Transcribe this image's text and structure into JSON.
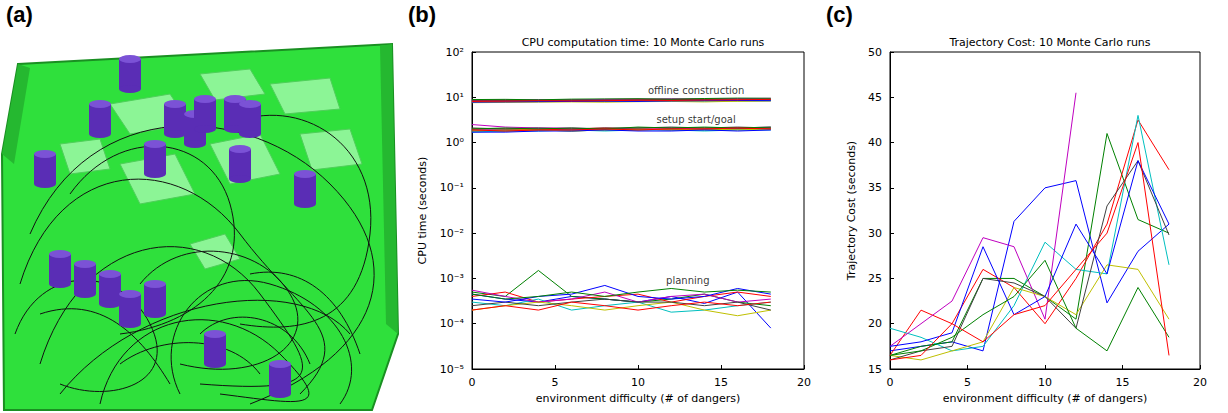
{
  "panel_labels": [
    "(a)",
    "(b)",
    "(c)"
  ],
  "chart_data": [
    {
      "type": "line",
      "title": "CPU computation time: 10 Monte Carlo runs",
      "x_label": "environment difficulty (# of dangers)",
      "y_label": "CPU time (seconds)",
      "log": "y",
      "grid": false,
      "xlim": [
        0,
        20
      ],
      "xticks": [
        0,
        5,
        10,
        15,
        20
      ],
      "ylim": [
        1e-05,
        100
      ],
      "yticks": [
        {
          "value": 1e-05,
          "label": "10⁻⁵"
        },
        {
          "value": 0.0001,
          "label": "10⁻⁴"
        },
        {
          "value": 0.001,
          "label": "10⁻³"
        },
        {
          "value": 0.01,
          "label": "10⁻²"
        },
        {
          "value": 0.1,
          "label": "10⁻¹"
        },
        {
          "value": 1,
          "label": "10⁰"
        },
        {
          "value": 10,
          "label": "10¹"
        },
        {
          "value": 100,
          "label": "10²"
        }
      ],
      "annotations": [
        {
          "text": "offline construction",
          "x": 13.5,
          "y": 14
        },
        {
          "text": "setup start/goal",
          "x": 13.5,
          "y": 3.2
        },
        {
          "text": "planning",
          "x": 13,
          "y": 0.0009
        }
      ],
      "x": [
        0,
        2,
        4,
        6,
        8,
        10,
        12,
        14,
        16,
        18
      ],
      "series": [
        {
          "color": "#0000ff",
          "values": [
            8.2,
            8.3,
            8.1,
            8.4,
            8.6,
            8.5,
            8.7,
            8.8,
            8.6,
            8.9
          ]
        },
        {
          "color": "#008000",
          "values": [
            7.9,
            8.0,
            8.2,
            8.1,
            8.3,
            8.2,
            8.4,
            8.5,
            8.3,
            8.4
          ]
        },
        {
          "color": "#ff0000",
          "values": [
            8.5,
            8.6,
            8.4,
            8.7,
            8.9,
            9.0,
            8.8,
            9.1,
            9.2,
            9.0
          ]
        },
        {
          "color": "#00bfbf",
          "values": [
            8.0,
            8.1,
            8.3,
            8.2,
            8.1,
            8.4,
            8.3,
            8.2,
            8.5,
            8.6
          ]
        },
        {
          "color": "#bf00bf",
          "values": [
            8.7,
            8.8,
            8.9,
            8.8,
            9.0,
            9.1,
            9.3,
            9.2,
            9.4,
            9.5
          ]
        },
        {
          "color": "#bfbf00",
          "values": [
            7.6,
            7.7,
            7.8,
            7.9,
            7.8,
            8.0,
            8.1,
            7.9,
            8.2,
            8.3
          ]
        },
        {
          "color": "#404040",
          "values": [
            8.3,
            8.4,
            8.5,
            8.6,
            8.5,
            8.7,
            8.8,
            8.9,
            8.7,
            8.8
          ]
        },
        {
          "color": "#0000ff",
          "values": [
            7.8,
            7.9,
            8.0,
            8.1,
            8.2,
            8.1,
            8.3,
            8.4,
            8.5,
            8.4
          ]
        },
        {
          "color": "#008000",
          "values": [
            8.9,
            9.0,
            8.8,
            9.1,
            9.2,
            9.3,
            9.1,
            9.4,
            9.6,
            9.5
          ]
        },
        {
          "color": "#ff0000",
          "values": [
            8.1,
            8.2,
            8.4,
            8.3,
            8.4,
            8.6,
            8.5,
            8.7,
            8.8,
            9.0
          ]
        },
        {
          "color": "#0000ff",
          "values": [
            1.9,
            1.9,
            2.0,
            1.9,
            2.0,
            2.0,
            1.9,
            2.0,
            2.1,
            2.0
          ]
        },
        {
          "color": "#008000",
          "values": [
            1.8,
            1.8,
            1.9,
            1.8,
            1.9,
            1.9,
            2.0,
            1.9,
            2.0,
            2.0
          ]
        },
        {
          "color": "#ff0000",
          "values": [
            2.0,
            2.0,
            1.9,
            2.0,
            2.1,
            2.0,
            2.0,
            2.1,
            2.0,
            2.1
          ]
        },
        {
          "color": "#00bfbf",
          "values": [
            1.7,
            1.8,
            1.8,
            1.9,
            1.8,
            1.9,
            1.9,
            1.8,
            1.9,
            1.9
          ]
        },
        {
          "color": "#bf00bf",
          "values": [
            2.5,
            2.2,
            2.1,
            2.1,
            2.0,
            2.1,
            2.1,
            2.0,
            2.1,
            2.2
          ]
        },
        {
          "color": "#bfbf00",
          "values": [
            1.8,
            1.9,
            1.9,
            1.8,
            1.9,
            2.0,
            1.9,
            2.0,
            1.9,
            2.0
          ]
        },
        {
          "color": "#404040",
          "values": [
            2.1,
            2.0,
            2.1,
            2.0,
            2.1,
            2.1,
            2.2,
            2.1,
            2.2,
            2.1
          ]
        },
        {
          "color": "#0000ff",
          "values": [
            1.7,
            1.7,
            1.8,
            1.8,
            1.9,
            1.8,
            1.8,
            1.9,
            1.8,
            1.9
          ]
        },
        {
          "color": "#008000",
          "values": [
            2.0,
            2.1,
            2.0,
            2.1,
            2.0,
            2.2,
            2.1,
            2.2,
            2.1,
            2.2
          ]
        },
        {
          "color": "#ff0000",
          "values": [
            1.9,
            1.8,
            1.9,
            1.9,
            2.0,
            1.9,
            2.0,
            2.0,
            2.1,
            2.0
          ]
        },
        {
          "color": "#0000ff",
          "values": [
            0.00045,
            0.00035,
            0.0003,
            0.0004,
            0.00035,
            0.0003,
            0.0004,
            0.00028,
            0.0005,
            8e-05
          ]
        },
        {
          "color": "#008000",
          "values": [
            0.0005,
            0.0004,
            0.0015,
            0.0004,
            0.00035,
            0.0003,
            0.00035,
            0.00045,
            0.0003,
            0.00025
          ]
        },
        {
          "color": "#ff0000",
          "values": [
            0.0004,
            0.0005,
            0.0003,
            0.00035,
            0.0004,
            0.00045,
            0.0003,
            0.0004,
            0.0005,
            0.0004
          ]
        },
        {
          "color": "#00bfbf",
          "values": [
            0.0003,
            0.00025,
            0.00035,
            0.0002,
            0.00025,
            0.0003,
            0.00018,
            0.0002,
            0.00025,
            0.0003
          ]
        },
        {
          "color": "#bf00bf",
          "values": [
            0.00055,
            0.0004,
            0.0003,
            0.00035,
            0.0005,
            0.0003,
            0.0004,
            0.00045,
            0.0003,
            0.00035
          ]
        },
        {
          "color": "#bfbf00",
          "values": [
            0.0002,
            0.00025,
            0.0003,
            0.00025,
            0.0002,
            0.00025,
            0.0003,
            0.0002,
            0.00015,
            0.0002
          ]
        },
        {
          "color": "#404040",
          "values": [
            0.00025,
            0.0003,
            0.00025,
            0.0003,
            0.00035,
            0.0003,
            0.0003,
            0.00025,
            0.0003,
            0.0002
          ]
        },
        {
          "color": "#0000ff",
          "values": [
            0.00035,
            0.0003,
            0.0004,
            0.00045,
            0.0007,
            0.0004,
            0.00035,
            0.0004,
            0.0006,
            0.00045
          ]
        },
        {
          "color": "#008000",
          "values": [
            0.00045,
            0.00035,
            0.0004,
            0.0005,
            0.0004,
            0.0005,
            0.0006,
            0.0005,
            0.00055,
            0.0005
          ]
        },
        {
          "color": "#ff0000",
          "values": [
            0.0002,
            0.00025,
            0.0002,
            0.0003,
            0.00025,
            0.0002,
            0.00025,
            0.0003,
            0.00025,
            0.0003
          ]
        }
      ]
    },
    {
      "type": "line",
      "title": "Trajectory Cost: 10 Monte Carlo runs",
      "x_label": "environment difficulty (# of dangers)",
      "y_label": "Trajectory Cost (seconds)",
      "grid": false,
      "xlim": [
        0,
        20
      ],
      "xticks": [
        0,
        5,
        10,
        15,
        20
      ],
      "ylim": [
        15,
        50
      ],
      "yticks": [
        15,
        20,
        25,
        30,
        35,
        40,
        45,
        50
      ],
      "x": [
        0,
        2,
        4,
        6,
        8,
        10,
        12,
        14,
        16,
        18
      ],
      "series": [
        {
          "color": "#0000ff",
          "values": [
            17,
            17.5,
            18,
            17,
            31.3,
            35,
            35.8,
            22.3,
            28,
            31
          ]
        },
        {
          "color": "#008000",
          "values": [
            16.5,
            17.5,
            18,
            25,
            25,
            23,
            20.5,
            41,
            31.5,
            30
          ]
        },
        {
          "color": "#ff0000",
          "values": [
            16.5,
            21.5,
            20,
            26,
            24,
            20,
            25,
            31,
            42.5,
            37
          ]
        },
        {
          "color": "#00bfbf",
          "values": [
            19.5,
            18.5,
            17,
            17.5,
            22,
            29,
            26,
            25.5,
            43,
            26.5
          ]
        },
        {
          "color": "#bf00bf",
          "values": [
            17.5,
            20,
            22.5,
            29.5,
            28.5,
            20.5,
            45.5,
            null,
            null,
            null
          ]
        },
        {
          "color": "#bfbf00",
          "values": [
            16.5,
            16,
            17,
            18,
            24,
            23,
            21,
            26.5,
            26,
            20.5
          ]
        },
        {
          "color": "#404040",
          "values": [
            16,
            17,
            17.5,
            25,
            24.5,
            23,
            19.5,
            33,
            38,
            29.8
          ]
        },
        {
          "color": "#0000ff",
          "values": [
            17.5,
            18,
            19,
            28.5,
            21,
            23,
            31,
            25.5,
            38,
            31
          ]
        },
        {
          "color": "#008000",
          "values": [
            16.5,
            17,
            18.5,
            21,
            23,
            27,
            19.5,
            17,
            24,
            18.5
          ]
        },
        {
          "color": "#ff0000",
          "values": [
            16,
            16.5,
            20,
            18,
            21,
            22,
            26,
            30,
            40,
            16.5
          ]
        }
      ]
    }
  ]
}
